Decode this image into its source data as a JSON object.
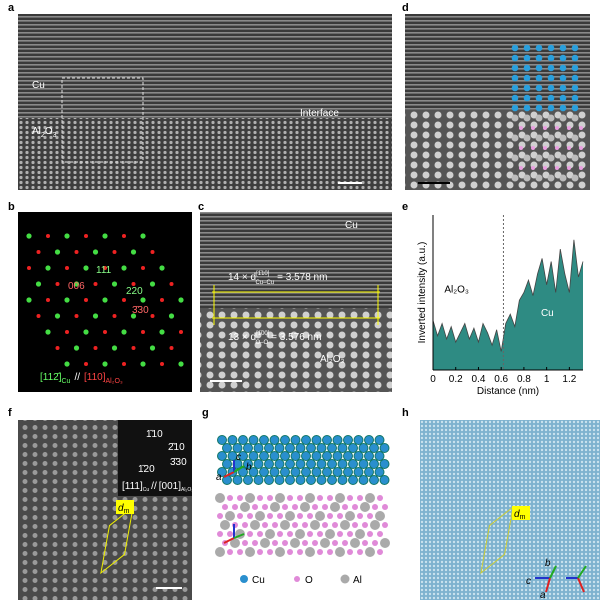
{
  "panels": {
    "a": {
      "label": "a",
      "cu": "Cu",
      "interface": "Interface",
      "al": "Al",
      "al_sub1": "2",
      "al_o": "O",
      "al_sub2": "3"
    },
    "b": {
      "label": "b",
      "s1": "111",
      "s2": "006",
      "s3": "220",
      "s4": "3̄30",
      "zone_cu": "[112̄]",
      "cu": "Cu",
      "sep": "//",
      "zone_al": "[110]",
      "al": "Al₂O₃"
    },
    "c": {
      "label": "c",
      "cu": "Cu",
      "l1a": "14 × d",
      "l1sup": "[1̄10]",
      "l1sub": "Cu–Cu",
      "l1b": "= 3.578 nm",
      "l2a": "13 × d",
      "l2sup": "[1̄00]",
      "l2sub": "O–O",
      "l2b": "= 3.576 nm",
      "al": "Al₂O₃"
    },
    "d": {
      "label": "d"
    },
    "e": {
      "label": "e"
    },
    "f": {
      "label": "f",
      "i1": "1̄10",
      "i2": "2̄10",
      "i3": "1̄20",
      "i4": "3̄30",
      "zone": "[111]",
      "cu": "Cu",
      "sep": "//",
      "zone2": "[001]",
      "al": "Al₂O₃",
      "dm": "d",
      "dm_sub": "m"
    },
    "g": {
      "label": "g",
      "a": "a",
      "b": "b",
      "c": "c",
      "cu": "Cu",
      "o": "O",
      "al": "Al"
    },
    "h": {
      "label": "h",
      "dm": "d",
      "dm_sub": "m",
      "a": "a",
      "b": "b",
      "c": "c"
    }
  },
  "chart_data": {
    "type": "area",
    "xlabel": "Distance (nm)",
    "ylabel": "Inverted intensity (a.u.)",
    "color": "#2e8b83",
    "annotations": [
      "Al₂O₃",
      "Cu"
    ],
    "x": [
      0,
      0.04,
      0.08,
      0.12,
      0.16,
      0.2,
      0.24,
      0.28,
      0.32,
      0.36,
      0.4,
      0.44,
      0.48,
      0.52,
      0.56,
      0.6,
      0.64,
      0.68,
      0.72,
      0.76,
      0.8,
      0.84,
      0.88,
      0.92,
      0.96,
      1.0,
      1.04,
      1.08,
      1.12,
      1.16,
      1.2,
      1.24,
      1.28,
      1.32
    ],
    "values": [
      0.32,
      0.22,
      0.3,
      0.2,
      0.28,
      0.18,
      0.24,
      0.3,
      0.2,
      0.27,
      0.18,
      0.3,
      0.24,
      0.16,
      0.26,
      0.12,
      0.3,
      0.36,
      0.28,
      0.45,
      0.5,
      0.58,
      0.48,
      0.62,
      0.72,
      0.55,
      0.7,
      0.5,
      0.78,
      0.62,
      0.5,
      0.84,
      0.6,
      0.7
    ],
    "divider_x": 0.62,
    "xlim": [
      0,
      1.32
    ],
    "ylim": [
      0,
      1
    ],
    "xticks": [
      0,
      0.2,
      0.4,
      0.6,
      0.8,
      1.0,
      1.2
    ]
  }
}
